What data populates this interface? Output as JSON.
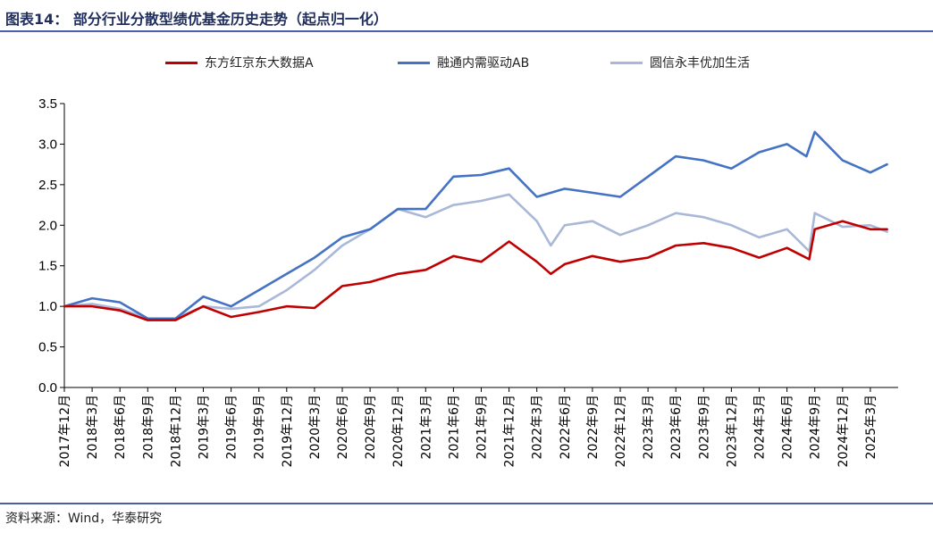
{
  "header": {
    "title": "图表14：   部分行业分散型绩优基金历史走势（起点归一化）"
  },
  "footer": {
    "source": "资料来源：Wind，华泰研究"
  },
  "chart_data": {
    "type": "line",
    "title": "部分行业分散型绩优基金历史走势（起点归一化）",
    "xlabel": "",
    "ylabel": "",
    "ylim": [
      0,
      3.5
    ],
    "yticks": [
      "0.0",
      "0.5",
      "1.0",
      "1.5",
      "2.0",
      "2.5",
      "3.0",
      "3.5"
    ],
    "xticks": [
      "2017年12月",
      "2018年3月",
      "2018年6月",
      "2018年9月",
      "2018年12月",
      "2019年3月",
      "2019年6月",
      "2019年9月",
      "2019年12月",
      "2020年3月",
      "2020年6月",
      "2020年9月",
      "2020年12月",
      "2021年3月",
      "2021年6月",
      "2021年9月",
      "2021年12月",
      "2022年3月",
      "2022年6月",
      "2022年9月",
      "2022年12月",
      "2023年3月",
      "2023年6月",
      "2023年9月",
      "2023年12月",
      "2024年3月",
      "2024年6月",
      "2024年9月",
      "2024年12月",
      "2025年3月"
    ],
    "legend_position": "top",
    "grid": false,
    "series": [
      {
        "name": "东方红京东大数据A",
        "color": "#c00000",
        "x": [
          0,
          1,
          2,
          3,
          4,
          5,
          6,
          7,
          8,
          9,
          10,
          11,
          12,
          13,
          14,
          15,
          16,
          17,
          17.5,
          18,
          19,
          20,
          21,
          22,
          23,
          24,
          25,
          26,
          26.8,
          27,
          28,
          29,
          29.6
        ],
        "values": [
          1.0,
          1.0,
          0.95,
          0.83,
          0.83,
          1.0,
          0.87,
          0.93,
          1.0,
          0.98,
          1.25,
          1.3,
          1.4,
          1.45,
          1.62,
          1.55,
          1.8,
          1.55,
          1.4,
          1.52,
          1.62,
          1.55,
          1.6,
          1.75,
          1.78,
          1.72,
          1.6,
          1.72,
          1.58,
          1.95,
          2.05,
          1.95,
          1.95
        ]
      },
      {
        "name": "融通内需驱动AB",
        "color": "#4472c4",
        "x": [
          0,
          1,
          2,
          3,
          4,
          5,
          6,
          7,
          8,
          9,
          10,
          11,
          12,
          13,
          14,
          15,
          16,
          17,
          18,
          19,
          20,
          21,
          22,
          23,
          24,
          25,
          26,
          26.7,
          27,
          28,
          29,
          29.6
        ],
        "values": [
          1.0,
          1.1,
          1.05,
          0.85,
          0.85,
          1.12,
          1.0,
          1.2,
          1.4,
          1.6,
          1.85,
          1.95,
          2.2,
          2.2,
          2.6,
          2.62,
          2.7,
          2.35,
          2.45,
          2.4,
          2.35,
          2.6,
          2.85,
          2.8,
          2.7,
          2.9,
          3.0,
          2.85,
          3.15,
          2.8,
          2.65,
          2.75
        ]
      },
      {
        "name": "圆信永丰优加生活",
        "color": "#a9b8d8",
        "x": [
          0,
          1,
          2,
          3,
          4,
          5,
          6,
          7,
          8,
          9,
          10,
          11,
          12,
          13,
          14,
          15,
          16,
          17,
          17.5,
          18,
          19,
          20,
          21,
          22,
          23,
          24,
          25,
          26,
          26.8,
          27,
          28,
          29,
          29.6
        ],
        "values": [
          1.0,
          1.03,
          0.97,
          0.85,
          0.85,
          1.0,
          0.97,
          1.0,
          1.2,
          1.45,
          1.75,
          1.95,
          2.2,
          2.1,
          2.25,
          2.3,
          2.38,
          2.05,
          1.75,
          2.0,
          2.05,
          1.88,
          2.0,
          2.15,
          2.1,
          2.0,
          1.85,
          1.95,
          1.68,
          2.15,
          1.98,
          2.0,
          1.92
        ]
      }
    ]
  }
}
